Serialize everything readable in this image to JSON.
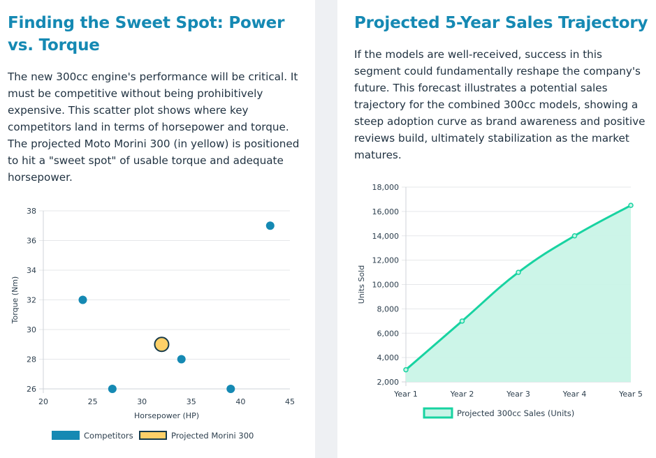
{
  "left": {
    "title": "Finding the Sweet Spot: Power vs. Torque",
    "description": "The new 300cc engine's performance will be critical. It must be competitive without being prohibitively expensive. This scatter plot shows where key competitors land in terms of horsepower and torque. The projected Moto Morini 300 (in yellow) is positioned to hit a \"sweet spot\" of usable torque and adequate horsepower."
  },
  "right": {
    "title": "Projected 5-Year Sales Trajectory",
    "description": "If the models are well-received, success in this segment could fundamentally reshape the company's future. This forecast illustrates a potential sales trajectory for the combined 300cc models, showing a steep adoption curve as brand awareness and positive reviews build, ultimately stabilization as the market matures."
  },
  "colors": {
    "title": "#1589b3",
    "competitors": "#1589b3",
    "morini_fill": "#fdd068",
    "morini_border": "#163a4a",
    "sales_line": "#18d3a1",
    "sales_fill": "#c9f4e7",
    "grid": "#e5e7ea"
  },
  "chart_data": [
    {
      "type": "scatter",
      "title": "",
      "xlabel": "Horsepower (HP)",
      "ylabel": "Torque (Nm)",
      "xlim": [
        20,
        45
      ],
      "ylim": [
        26,
        38
      ],
      "xticks": [
        "20",
        "25",
        "30",
        "35",
        "40",
        "45"
      ],
      "yticks": [
        "26",
        "28",
        "30",
        "32",
        "34",
        "36",
        "38"
      ],
      "grid": true,
      "legend_position": "bottom",
      "series": [
        {
          "name": "Competitors",
          "points": [
            {
              "x": 24,
              "y": 32
            },
            {
              "x": 27,
              "y": 26
            },
            {
              "x": 34,
              "y": 28
            },
            {
              "x": 39,
              "y": 26
            },
            {
              "x": 43,
              "y": 37
            }
          ]
        },
        {
          "name": "Projected Morini 300",
          "points": [
            {
              "x": 32,
              "y": 29
            }
          ]
        }
      ]
    },
    {
      "type": "area",
      "title": "",
      "xlabel": "",
      "ylabel": "Units Sold",
      "categories": [
        "Year 1",
        "Year 2",
        "Year 3",
        "Year 4",
        "Year 5"
      ],
      "ylim": [
        2000,
        18000
      ],
      "yticks": [
        "2,000",
        "4,000",
        "6,000",
        "8,000",
        "10,000",
        "12,000",
        "14,000",
        "16,000",
        "18,000"
      ],
      "grid": true,
      "legend_position": "bottom",
      "series": [
        {
          "name": "Projected 300cc Sales (Units)",
          "values": [
            3000,
            7000,
            11000,
            14000,
            16500
          ]
        }
      ]
    }
  ]
}
